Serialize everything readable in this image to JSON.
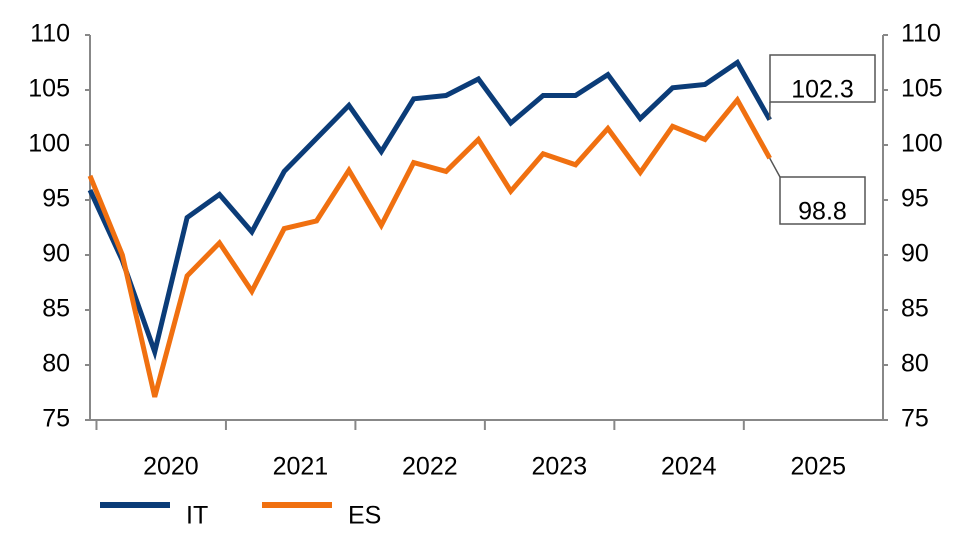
{
  "chart_data": {
    "type": "line",
    "categories": [
      null,
      null,
      "2020",
      null,
      null,
      null,
      "2021",
      null,
      null,
      null,
      "2022",
      null,
      null,
      null,
      "2023",
      null,
      null,
      null,
      "2024",
      null,
      null,
      null,
      "2025"
    ],
    "series": [
      {
        "name": "IT",
        "color": "#0b3c78",
        "values": [
          95.9,
          89.5,
          81.2,
          93.4,
          95.5,
          92.1,
          97.6,
          100.6,
          103.6,
          99.4,
          104.2,
          104.5,
          106.0,
          102.0,
          104.5,
          104.5,
          106.4,
          102.4,
          105.2,
          105.5,
          107.5,
          102.3,
          null
        ]
      },
      {
        "name": "ES",
        "color": "#f07010",
        "values": [
          97.2,
          90.0,
          77.1,
          88.1,
          91.1,
          86.7,
          92.4,
          93.1,
          97.7,
          92.7,
          98.4,
          97.6,
          100.5,
          95.8,
          99.2,
          98.2,
          101.5,
          97.5,
          101.7,
          100.5,
          104.1,
          98.8,
          null
        ]
      }
    ],
    "ylim": [
      75,
      110
    ],
    "yticks": [
      75,
      80,
      85,
      90,
      95,
      100,
      105,
      110
    ],
    "y2lim": [
      75,
      110
    ],
    "y2ticks": [
      75,
      80,
      85,
      90,
      95,
      100,
      105,
      110
    ],
    "end_labels": true
  }
}
